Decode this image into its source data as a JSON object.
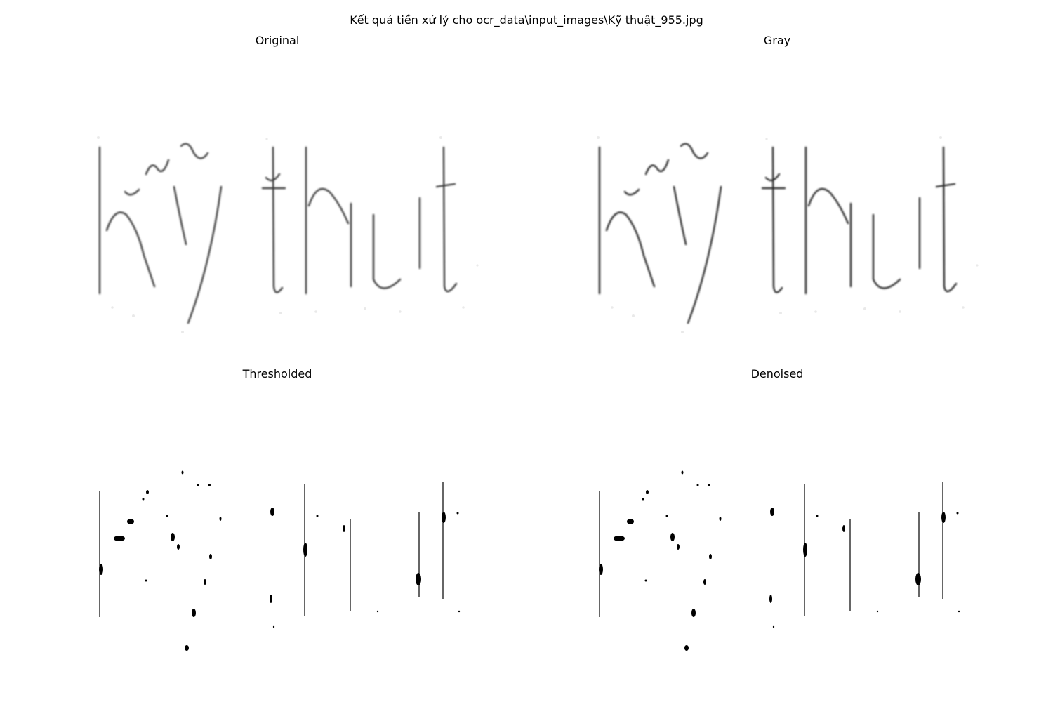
{
  "figure": {
    "suptitle": "Kết quả tiền xử lý cho ocr_data\\input_images\\Kỹ thuật_955.jpg"
  },
  "panels": [
    {
      "id": "original",
      "title": "Original",
      "style": "soft",
      "stroke_color": "#3a3a3a"
    },
    {
      "id": "gray",
      "title": "Gray",
      "style": "soft",
      "stroke_color": "#2a2a2a"
    },
    {
      "id": "thresholded",
      "title": "Thresholded",
      "style": "binary",
      "stroke_color": "#000000"
    },
    {
      "id": "denoised",
      "title": "Denoised",
      "style": "binary",
      "stroke_color": "#000000"
    }
  ],
  "image_text": "Kỹ thut"
}
